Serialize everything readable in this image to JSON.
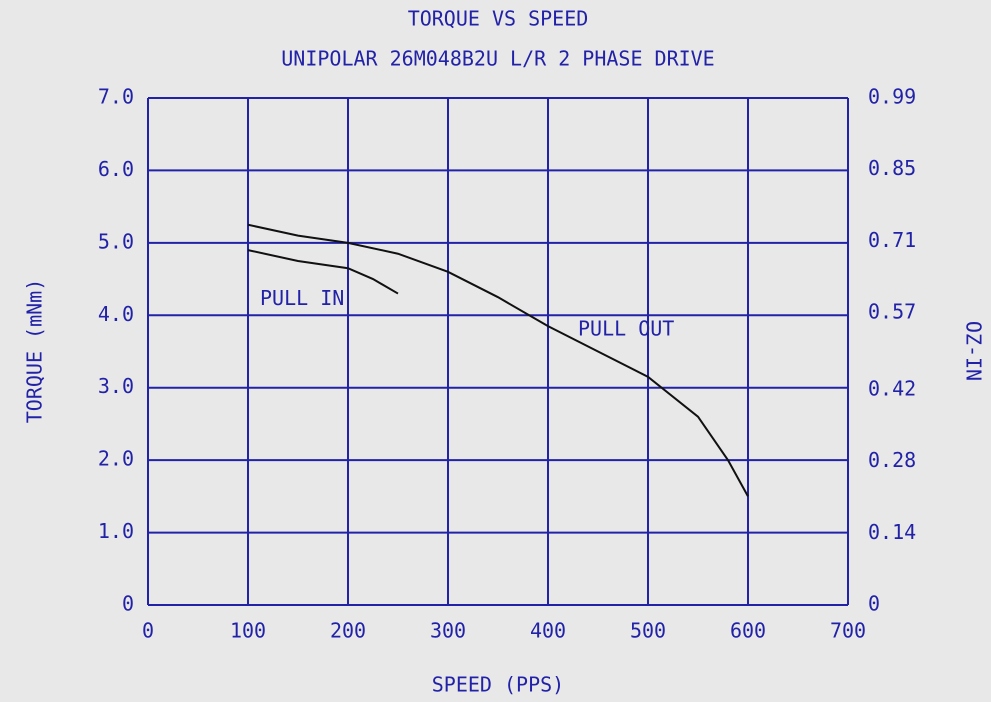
{
  "chart_data": {
    "type": "line",
    "title": "TORQUE VS SPEED",
    "subtitle": "UNIPOLAR 26M048B2U L/R 2 PHASE DRIVE",
    "xlabel": "SPEED (PPS)",
    "ylabel": "TORQUE (mNm)",
    "y2label": "OZ-IN",
    "xlim": [
      0,
      700
    ],
    "xticks": [
      0,
      100,
      200,
      300,
      400,
      500,
      600,
      700
    ],
    "ylim": [
      0,
      7
    ],
    "yticks": [
      0,
      {
        "value": 1,
        "label": "1.0"
      },
      {
        "value": 2,
        "label": "2.0"
      },
      {
        "value": 3,
        "label": "3.0"
      },
      {
        "value": 4,
        "label": "4.0"
      },
      {
        "value": 5,
        "label": "5.0"
      },
      {
        "value": 6,
        "label": "6.0"
      },
      {
        "value": 7,
        "label": "7.0"
      }
    ],
    "y2lim": [
      0,
      0.99
    ],
    "y2ticks": [
      0,
      0.14,
      0.28,
      0.42,
      0.57,
      0.71,
      0.85,
      0.99
    ],
    "grid": true,
    "series": [
      {
        "name": "PULL IN",
        "color": "#111111",
        "x": [
          100,
          150,
          200,
          225,
          250
        ],
        "values": [
          4.9,
          4.75,
          4.65,
          4.5,
          4.3
        ]
      },
      {
        "name": "PULL OUT",
        "color": "#111111",
        "x": [
          100,
          150,
          200,
          250,
          300,
          350,
          400,
          450,
          500,
          550,
          580,
          600
        ],
        "values": [
          5.25,
          5.1,
          5.0,
          4.85,
          4.6,
          4.25,
          3.85,
          3.5,
          3.15,
          2.6,
          2.0,
          1.5
        ]
      }
    ]
  }
}
